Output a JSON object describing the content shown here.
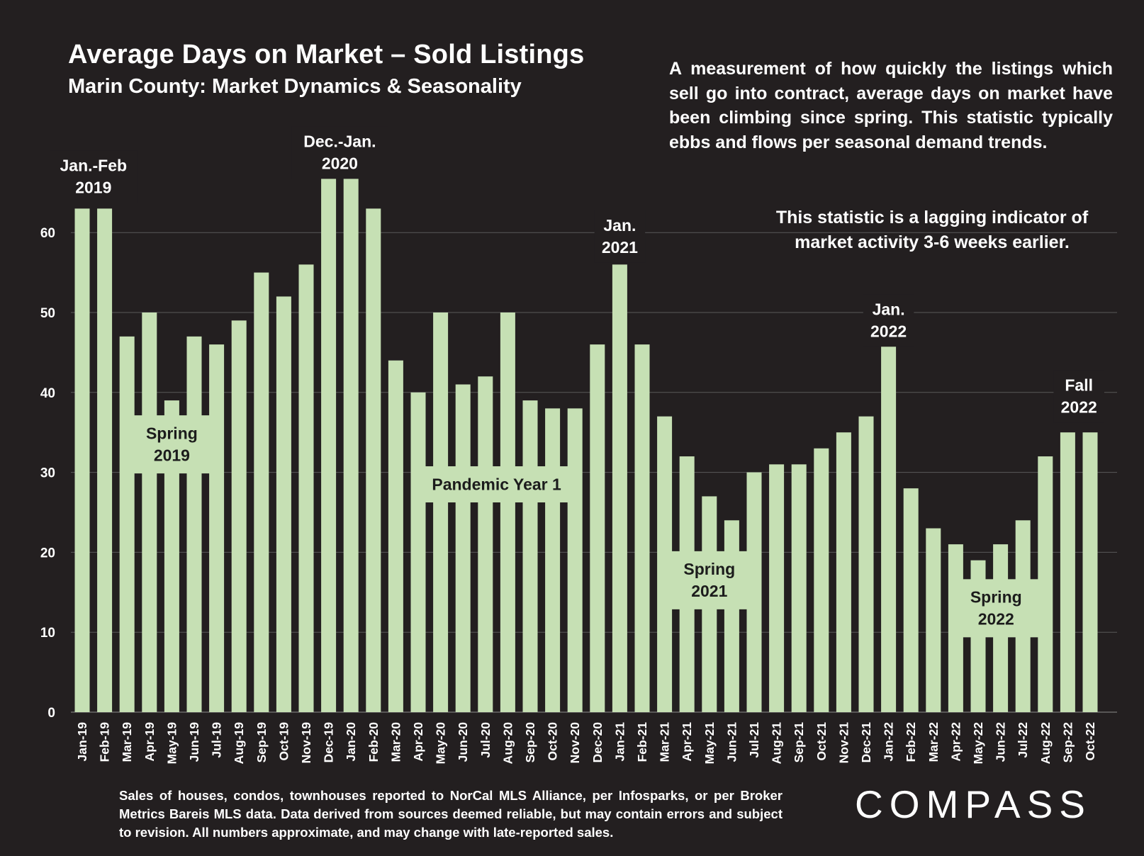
{
  "header": {
    "title": "Average Days on Market – Sold Listings",
    "subtitle": "Marin County: Market Dynamics & Seasonality"
  },
  "notes": {
    "description": "A measurement of how quickly the listings which sell go into contract, average days on market have been climbing since spring. This statistic typically ebbs and flows per seasonal demand trends.",
    "lagging": "This statistic is a lagging indicator of market activity 3-6 weeks earlier.",
    "footnote": "Sales of houses, condos, townhouses reported to NorCal MLS Alliance, per Infosparks, or per Broker Metrics Bareis MLS data. Data derived from sources deemed reliable, but may contain errors and subject to revision. All numbers approximate, and may change with late-reported sales."
  },
  "brand": {
    "logo_text": "COMPASS"
  },
  "colors": {
    "background": "#231f20",
    "bar": "#c6e0b4",
    "text": "#ffffff",
    "annotation_box_text": "#1c1c1c",
    "gridline": "#595959"
  },
  "chart_data": {
    "type": "bar",
    "title": "Average Days on Market – Sold Listings",
    "subtitle": "Marin County: Market Dynamics & Seasonality",
    "xlabel": "",
    "ylabel": "",
    "ylim": [
      0,
      65
    ],
    "yticks": [
      0,
      10,
      20,
      30,
      40,
      50,
      60
    ],
    "grid": true,
    "legend": "none",
    "categories": [
      "Jan-19",
      "Feb-19",
      "Mar-19",
      "Apr-19",
      "May-19",
      "Jun-19",
      "Jul-19",
      "Aug-19",
      "Sep-19",
      "Oct-19",
      "Nov-19",
      "Dec-19",
      "Jan-20",
      "Feb-20",
      "Mar-20",
      "Apr-20",
      "May-20",
      "Jun-20",
      "Jul-20",
      "Aug-20",
      "Sep-20",
      "Oct-20",
      "Nov-20",
      "Dec-20",
      "Jan-21",
      "Feb-21",
      "Mar-21",
      "Apr-21",
      "May-21",
      "Jun-21",
      "Jul-21",
      "Aug-21",
      "Sep-21",
      "Oct-21",
      "Nov-21",
      "Dec-21",
      "Jan-22",
      "Feb-22",
      "Mar-22",
      "Apr-22",
      "May-22",
      "Jun-22",
      "Jul-22",
      "Aug-22",
      "Sep-22",
      "Oct-22"
    ],
    "values": [
      63,
      63,
      47,
      50,
      39,
      47,
      46,
      49,
      55,
      52,
      56,
      67,
      67,
      63,
      44,
      40,
      50,
      41,
      42,
      50,
      39,
      38,
      38,
      46,
      56,
      46,
      37,
      32,
      27,
      24,
      30,
      31,
      31,
      33,
      35,
      37,
      46,
      28,
      23,
      21,
      19,
      21,
      24,
      32,
      35,
      35
    ],
    "annotations": [
      {
        "text": [
          "Jan.-Feb",
          "2019"
        ],
        "style": "plain",
        "anchor_category": 0.5,
        "y_value": 67
      },
      {
        "text": [
          "Dec.-Jan.",
          "2020"
        ],
        "style": "plain",
        "anchor_category": 11.5,
        "y_value": 70
      },
      {
        "text": [
          "Jan.",
          "2021"
        ],
        "style": "plain",
        "anchor_category": 24,
        "y_value": 59.5
      },
      {
        "text": [
          "Jan.",
          "2022"
        ],
        "style": "plain",
        "anchor_category": 36,
        "y_value": 49
      },
      {
        "text": [
          "Fall",
          "2022"
        ],
        "style": "plain",
        "anchor_category": 44.5,
        "y_value": 39.5
      },
      {
        "text": [
          "Spring",
          "2019"
        ],
        "style": "box",
        "anchor_category": 4,
        "y_value": 33.5
      },
      {
        "text": [
          "Pandemic Year 1"
        ],
        "style": "box",
        "anchor_category": 18.5,
        "y_value": 28.5
      },
      {
        "text": [
          "Spring",
          "2021"
        ],
        "style": "box",
        "anchor_category": 28,
        "y_value": 16.5
      },
      {
        "text": [
          "Spring",
          "2022"
        ],
        "style": "box",
        "anchor_category": 40.8,
        "y_value": 13
      }
    ]
  }
}
